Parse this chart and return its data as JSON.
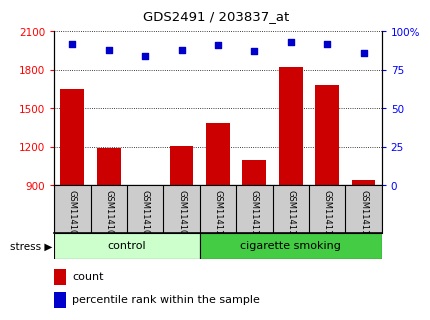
{
  "title": "GDS2491 / 203837_at",
  "samples": [
    "GSM114106",
    "GSM114107",
    "GSM114108",
    "GSM114109",
    "GSM114110",
    "GSM114111",
    "GSM114112",
    "GSM114113",
    "GSM114114"
  ],
  "bar_values": [
    1650,
    1190,
    870,
    1210,
    1390,
    1100,
    1820,
    1680,
    940
  ],
  "percentile_values": [
    92,
    88,
    84,
    88,
    91,
    87,
    93,
    92,
    86
  ],
  "bar_color": "#cc0000",
  "dot_color": "#0000cc",
  "ylim_left": [
    900,
    2100
  ],
  "ylim_right": [
    0,
    100
  ],
  "yticks_left": [
    900,
    1200,
    1500,
    1800,
    2100
  ],
  "yticks_right": [
    0,
    25,
    50,
    75,
    100
  ],
  "right_tick_labels": [
    "0",
    "25",
    "50",
    "75",
    "100%"
  ],
  "control_group_count": 4,
  "smoking_group_count": 5,
  "control_color": "#ccffcc",
  "smoking_color": "#44cc44",
  "group_label_control": "control",
  "group_label_smoking": "cigarette smoking",
  "stress_label": "stress",
  "legend_count": "count",
  "legend_percentile": "percentile rank within the sample",
  "bar_width": 0.65,
  "background_color": "#ffffff",
  "label_bg_color": "#cccccc",
  "grid_color": "#000000"
}
